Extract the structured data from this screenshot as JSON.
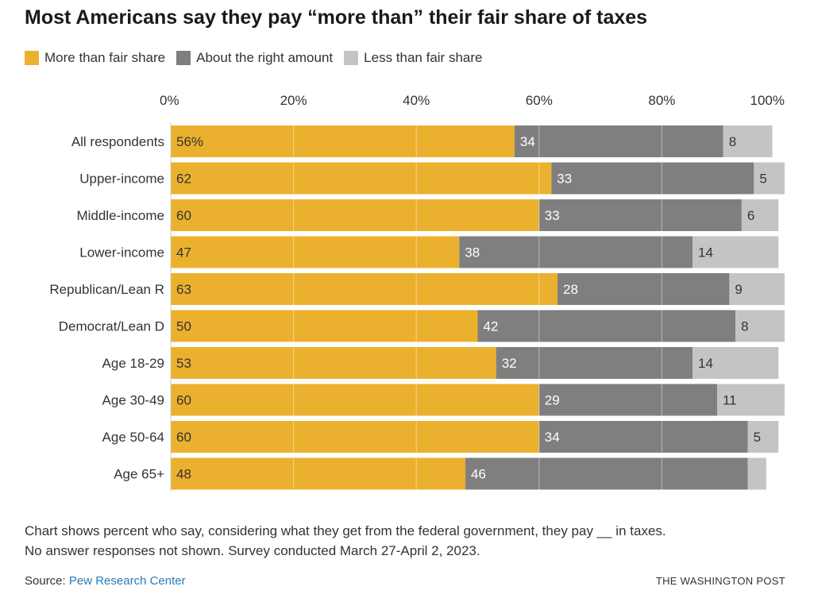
{
  "header": {
    "title": "Most Americans say they pay “more than” their fair share of taxes"
  },
  "footer": {
    "note_line1": "Chart shows percent who say, considering what they get from the federal government, they pay __ in taxes.",
    "note_line2": "No answer responses not shown. Survey conducted March 27-April 2, 2023.",
    "source_label": "Source: ",
    "source_name": "Pew Research Center",
    "publisher": "THE WASHINGTON POST"
  },
  "colors": {
    "more": "#ebb02d",
    "about": "#7f7f7f",
    "less": "#c4c4c4"
  },
  "chart_data": {
    "type": "bar",
    "orientation": "horizontal",
    "stacked": true,
    "title": "Most Americans say they pay “more than” their fair share of taxes",
    "xlim": [
      0,
      100
    ],
    "x_ticks": [
      0,
      20,
      40,
      60,
      80,
      100
    ],
    "x_tick_labels": [
      "0%",
      "20%",
      "40%",
      "60%",
      "80%",
      "100%"
    ],
    "grid": true,
    "legend_position": "top-left",
    "categories": [
      "All respondents",
      "Upper-income",
      "Middle-income",
      "Lower-income",
      "Republican/Lean R",
      "Democrat/Lean D",
      "Age 18-29",
      "Age 30-49",
      "Age 50-64",
      "Age 65+"
    ],
    "series": [
      {
        "name": "More than fair share",
        "color_key": "more",
        "values": [
          56,
          62,
          60,
          47,
          63,
          50,
          53,
          60,
          60,
          48
        ],
        "labels": [
          "56%",
          "62",
          "60",
          "47",
          "63",
          "50",
          "53",
          "60",
          "60",
          "48"
        ]
      },
      {
        "name": "About the right amount",
        "color_key": "about",
        "values": [
          34,
          33,
          33,
          38,
          28,
          42,
          32,
          29,
          34,
          46
        ],
        "labels": [
          "34",
          "33",
          "33",
          "38",
          "28",
          "42",
          "32",
          "29",
          "34",
          "46"
        ]
      },
      {
        "name": "Less than fair share",
        "color_key": "less",
        "values": [
          8,
          5,
          6,
          14,
          9,
          8,
          14,
          11,
          5,
          3
        ],
        "labels": [
          "8",
          "5",
          "6",
          "14",
          "9",
          "8",
          "14",
          "11",
          "5",
          ""
        ]
      }
    ]
  }
}
